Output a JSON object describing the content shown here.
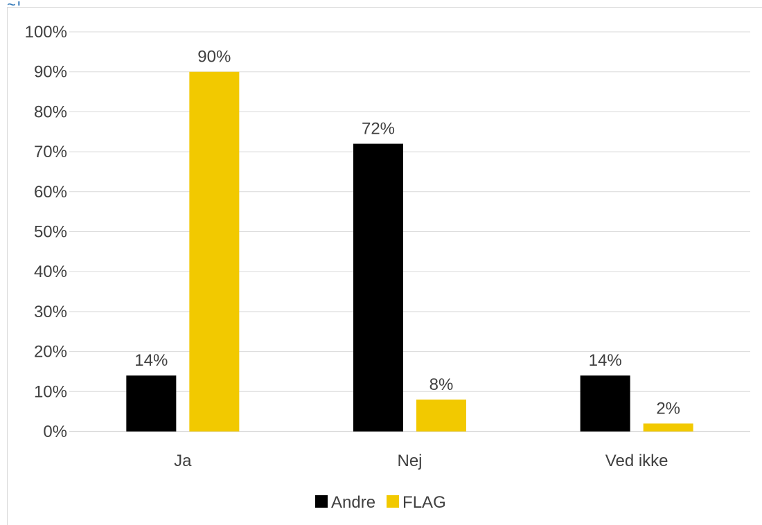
{
  "chart_data": {
    "type": "bar",
    "categories": [
      "Ja",
      "Nej",
      "Ved ikke"
    ],
    "series": [
      {
        "name": "Andre",
        "values": [
          14,
          72,
          14
        ],
        "color": "#000000"
      },
      {
        "name": "FLAG",
        "values": [
          90,
          8,
          2
        ],
        "color": "#f2c900"
      }
    ],
    "data_labels": [
      [
        "14%",
        "72%",
        "14%"
      ],
      [
        "90%",
        "8%",
        "2%"
      ]
    ],
    "y_ticks": [
      "0%",
      "10%",
      "20%",
      "30%",
      "40%",
      "50%",
      "60%",
      "70%",
      "80%",
      "90%",
      "100%"
    ],
    "ylim": [
      0,
      100
    ],
    "grid": true,
    "legend_position": "bottom",
    "title": "",
    "xlabel": "",
    "ylabel": ""
  }
}
